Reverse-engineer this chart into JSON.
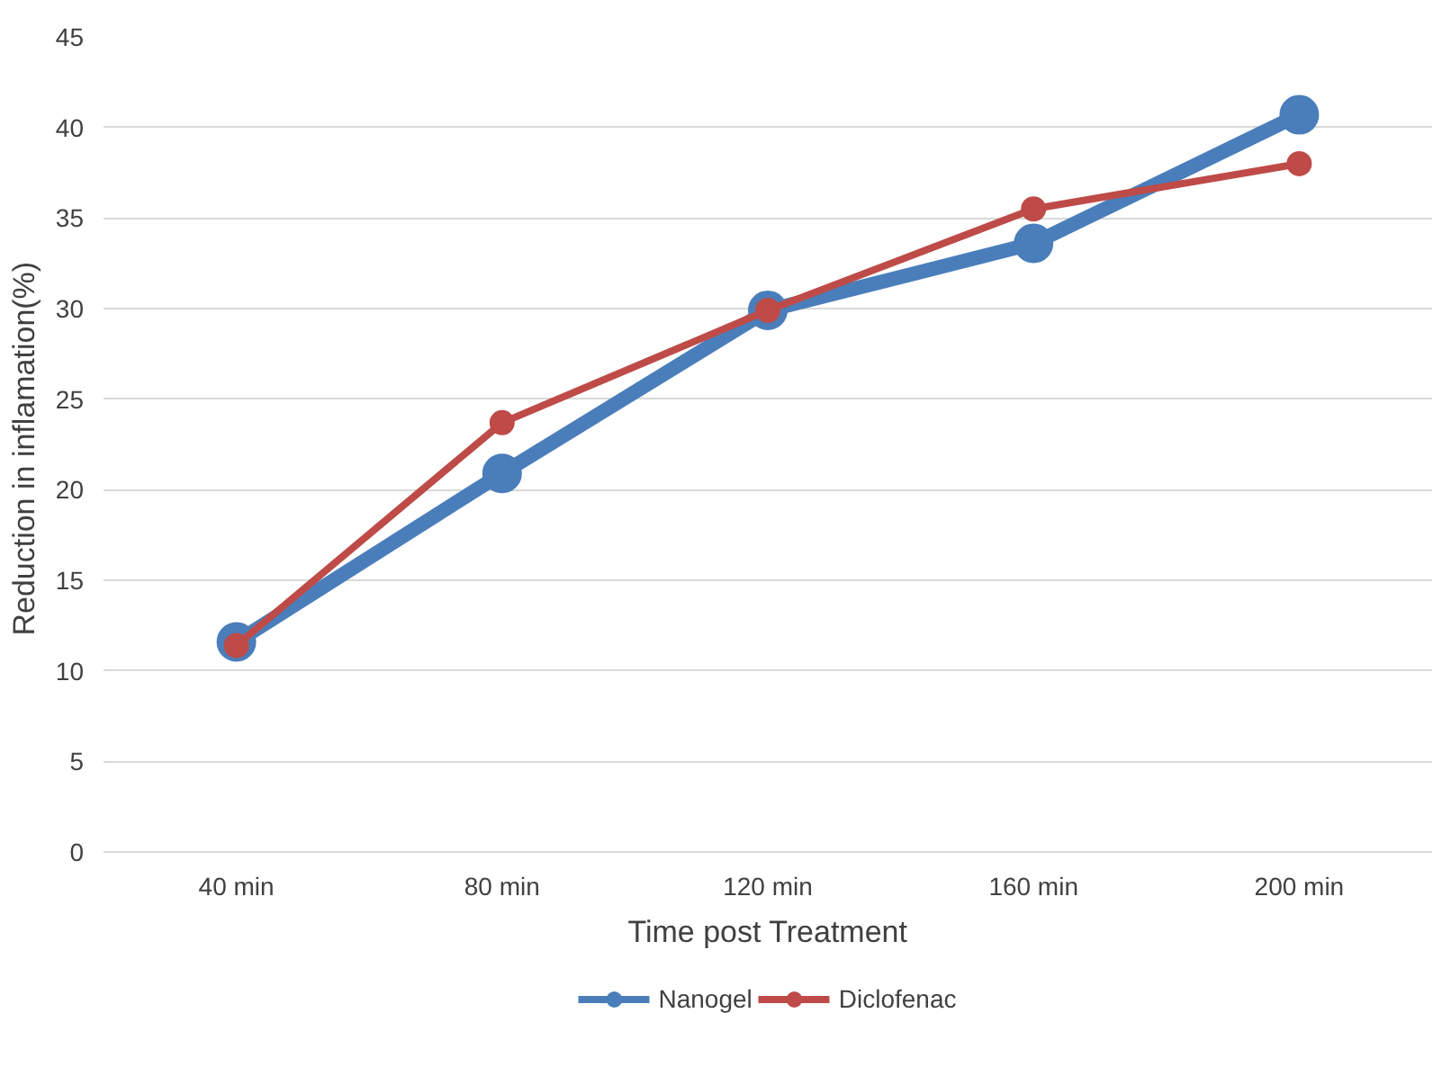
{
  "chart_data": {
    "type": "line",
    "xlabel": "Time post Treatment",
    "ylabel": "Reduction in  inflamation(%)",
    "categories": [
      "40 min",
      "80 min",
      "120 min",
      "160 min",
      "200 min"
    ],
    "series": [
      {
        "name": "Nanogel",
        "color": "#4a7ebb",
        "values": [
          11.6,
          20.9,
          29.9,
          33.6,
          40.7
        ]
      },
      {
        "name": "Diclofenac",
        "color": "#be4b48",
        "values": [
          11.4,
          23.7,
          29.9,
          35.5,
          38.0
        ]
      }
    ],
    "ylim": [
      0,
      45
    ],
    "yticks": [
      0,
      5,
      10,
      15,
      20,
      25,
      30,
      35,
      40,
      45
    ],
    "grid": "y",
    "legend": "bottom",
    "marker": "circle",
    "line_style": "solid"
  }
}
